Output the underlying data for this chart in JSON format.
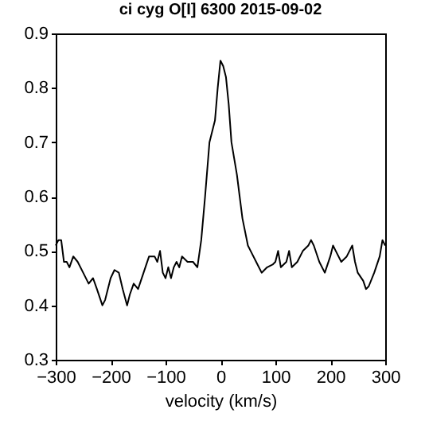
{
  "chart_data": {
    "type": "line",
    "title": "ci cyg  O[I] 6300  2015-09-02",
    "xlabel": "velocity (km/s)",
    "xlim": [
      -300,
      300
    ],
    "xticks": [
      -300,
      -200,
      -100,
      0,
      100,
      200,
      300
    ],
    "ylim": [
      0.3,
      0.9
    ],
    "yticks": [
      0.3,
      0.4,
      0.5,
      0.6,
      0.7,
      0.8,
      0.9
    ],
    "grid": false,
    "series": [
      {
        "color": "#000000",
        "x": [
          -300,
          -295,
          -290,
          -285,
          -280,
          -275,
          -268,
          -260,
          -250,
          -240,
          -232,
          -225,
          -215,
          -210,
          -200,
          -193,
          -185,
          -178,
          -170,
          -165,
          -158,
          -150,
          -140,
          -130,
          -120,
          -115,
          -110,
          -105,
          -100,
          -95,
          -90,
          -85,
          -80,
          -75,
          -70,
          -60,
          -50,
          -42,
          -35,
          -28,
          -20,
          -15,
          -10,
          -5,
          0,
          5,
          10,
          15,
          20,
          25,
          30,
          35,
          40,
          50,
          55,
          65,
          75,
          85,
          95,
          100,
          105,
          110,
          120,
          125,
          130,
          140,
          150,
          160,
          165,
          170,
          180,
          190,
          200,
          205,
          210,
          220,
          230,
          240,
          245,
          250,
          260,
          265,
          270,
          280,
          290,
          295,
          300
        ],
        "values": [
          0.51,
          0.52,
          0.52,
          0.48,
          0.48,
          0.47,
          0.49,
          0.48,
          0.46,
          0.44,
          0.45,
          0.43,
          0.4,
          0.41,
          0.45,
          0.465,
          0.46,
          0.43,
          0.4,
          0.42,
          0.44,
          0.43,
          0.46,
          0.49,
          0.49,
          0.48,
          0.5,
          0.46,
          0.45,
          0.47,
          0.45,
          0.47,
          0.48,
          0.47,
          0.49,
          0.48,
          0.48,
          0.47,
          0.52,
          0.6,
          0.7,
          0.72,
          0.74,
          0.8,
          0.85,
          0.84,
          0.82,
          0.77,
          0.7,
          0.67,
          0.64,
          0.6,
          0.56,
          0.51,
          0.5,
          0.48,
          0.46,
          0.47,
          0.475,
          0.48,
          0.5,
          0.47,
          0.48,
          0.5,
          0.47,
          0.48,
          0.5,
          0.51,
          0.52,
          0.51,
          0.48,
          0.46,
          0.49,
          0.51,
          0.5,
          0.48,
          0.49,
          0.51,
          0.48,
          0.46,
          0.445,
          0.43,
          0.435,
          0.46,
          0.49,
          0.52,
          0.51
        ]
      }
    ]
  }
}
